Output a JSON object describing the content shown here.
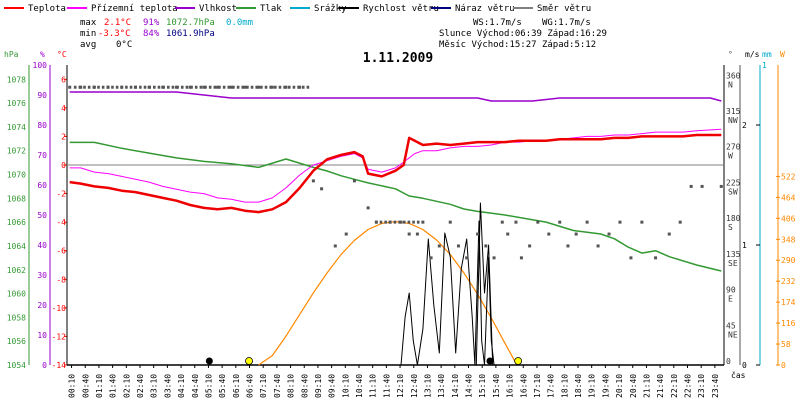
{
  "chart_data": {
    "type": "line",
    "title": "1.11.2009",
    "legend": [
      {
        "name": "Teplota",
        "color": "#ff0000"
      },
      {
        "name": "Přízemní teplota",
        "color": "#ff00ff"
      },
      {
        "name": "Vlhkost",
        "color": "#9900cc"
      },
      {
        "name": "Tlak",
        "color": "#339933"
      },
      {
        "name": "Srážky",
        "color": "#00aacc"
      },
      {
        "name": "Rychlost větru",
        "color": "#000000"
      },
      {
        "name": "Náraz větru",
        "color": "#000080"
      },
      {
        "name": "Směr větru",
        "color": "#808080"
      }
    ],
    "stats": {
      "max_label": "max",
      "max_temp": "2.1°C",
      "max_hum": "91%",
      "max_press": "1072.7hPa",
      "max_rain": "0.0mm",
      "min_label": "min",
      "min_temp": "-3.3°C",
      "min_hum": "84%",
      "min_press": "1061.9hPa",
      "avg_label": "avg",
      "avg_temp": "0°C",
      "ws": "WS:1.7m/s",
      "wg": "WG:1.7m/s",
      "sun": "Slunce Východ:06:39  Západ:16:29",
      "moon": "Měsíc  Východ:15:27  Západ:5:12"
    },
    "axes_units": {
      "hpa": "hPa",
      "pct": "%",
      "degc": "°C",
      "deg": "°",
      "ms": "m/s",
      "mm": "mm",
      "w": "W",
      "cas": "čas"
    },
    "axis_ticks": {
      "temp": [
        "6",
        "4",
        "2",
        "0",
        "-2",
        "-4",
        "-6",
        "-8",
        "-10",
        "-12",
        "-14"
      ],
      "humidity": [
        "100",
        "90",
        "80",
        "70",
        "60",
        "50",
        "40",
        "30",
        "20",
        "10",
        "0"
      ],
      "pressure": [
        "1078",
        "1076",
        "1074",
        "1072",
        "1070",
        "1068",
        "1066",
        "1064",
        "1062",
        "1060",
        "1058",
        "1056",
        "1054"
      ],
      "direction": [
        {
          "deg": "360",
          "dir": "N"
        },
        {
          "deg": "315",
          "dir": "NW"
        },
        {
          "deg": "270",
          "dir": "W"
        },
        {
          "deg": "225",
          "dir": "SW"
        },
        {
          "deg": "180",
          "dir": "S"
        },
        {
          "deg": "135",
          "dir": "SE"
        },
        {
          "deg": "90",
          "dir": "E"
        },
        {
          "deg": "45",
          "dir": "NE"
        },
        {
          "deg": "0",
          "dir": ""
        }
      ],
      "wind_ms": [
        "2",
        "1",
        "0"
      ],
      "rain_mm": [
        "1"
      ],
      "solar_w": [
        "522",
        "464",
        "406",
        "348",
        "290",
        "232",
        "174",
        "116",
        "58",
        "0"
      ],
      "time": [
        "00:10",
        "00:40",
        "01:10",
        "01:40",
        "02:10",
        "02:40",
        "03:10",
        "03:40",
        "04:10",
        "04:40",
        "05:10",
        "05:40",
        "06:10",
        "06:40",
        "07:10",
        "07:40",
        "08:10",
        "08:40",
        "09:10",
        "09:40",
        "10:10",
        "10:40",
        "11:10",
        "11:40",
        "12:10",
        "12:40",
        "13:10",
        "13:40",
        "14:10",
        "14:40",
        "15:10",
        "15:40",
        "16:10",
        "16:40",
        "17:10",
        "17:40",
        "18:10",
        "18:40",
        "19:10",
        "19:40",
        "20:10",
        "20:40",
        "21:10",
        "21:40",
        "22:10",
        "22:40",
        "23:10",
        "23:40"
      ]
    },
    "ranges": {
      "temp": [
        -14,
        7
      ],
      "time_hours": [
        0,
        24
      ],
      "solar": [
        0,
        522
      ],
      "wind": [
        0,
        2.5
      ]
    },
    "series": {
      "temperature": [
        [
          0.1,
          -1.2
        ],
        [
          0.5,
          -1.3
        ],
        [
          1.0,
          -1.5
        ],
        [
          1.5,
          -1.6
        ],
        [
          2.0,
          -1.8
        ],
        [
          2.5,
          -1.9
        ],
        [
          3.0,
          -2.1
        ],
        [
          3.5,
          -2.3
        ],
        [
          4.0,
          -2.5
        ],
        [
          4.5,
          -2.8
        ],
        [
          5.0,
          -3.0
        ],
        [
          5.5,
          -3.1
        ],
        [
          6.0,
          -3.0
        ],
        [
          6.5,
          -3.2
        ],
        [
          7.0,
          -3.3
        ],
        [
          7.5,
          -3.1
        ],
        [
          8.0,
          -2.6
        ],
        [
          8.5,
          -1.6
        ],
        [
          9.0,
          -0.4
        ],
        [
          9.5,
          0.4
        ],
        [
          10.0,
          0.7
        ],
        [
          10.5,
          0.9
        ],
        [
          10.8,
          0.6
        ],
        [
          11.0,
          -0.6
        ],
        [
          11.5,
          -0.8
        ],
        [
          12.0,
          -0.4
        ],
        [
          12.3,
          0.0
        ],
        [
          12.5,
          1.9
        ],
        [
          12.8,
          1.6
        ],
        [
          13.0,
          1.4
        ],
        [
          13.5,
          1.5
        ],
        [
          14.0,
          1.4
        ],
        [
          14.5,
          1.5
        ],
        [
          15.0,
          1.6
        ],
        [
          15.5,
          1.6
        ],
        [
          16.0,
          1.6
        ],
        [
          16.5,
          1.7
        ],
        [
          17.0,
          1.7
        ],
        [
          17.5,
          1.7
        ],
        [
          18.0,
          1.8
        ],
        [
          18.5,
          1.8
        ],
        [
          19.0,
          1.8
        ],
        [
          19.5,
          1.8
        ],
        [
          20.0,
          1.9
        ],
        [
          20.5,
          1.9
        ],
        [
          21.0,
          2.0
        ],
        [
          21.5,
          2.0
        ],
        [
          22.0,
          2.0
        ],
        [
          22.5,
          2.0
        ],
        [
          23.0,
          2.1
        ],
        [
          23.9,
          2.1
        ]
      ],
      "ground_temperature": [
        [
          0.1,
          -0.2
        ],
        [
          0.5,
          -0.2
        ],
        [
          1.0,
          -0.5
        ],
        [
          1.5,
          -0.6
        ],
        [
          2.0,
          -0.8
        ],
        [
          2.5,
          -1.0
        ],
        [
          3.0,
          -1.2
        ],
        [
          3.5,
          -1.5
        ],
        [
          4.0,
          -1.7
        ],
        [
          4.5,
          -1.9
        ],
        [
          5.0,
          -2.0
        ],
        [
          5.5,
          -2.3
        ],
        [
          6.0,
          -2.4
        ],
        [
          6.5,
          -2.6
        ],
        [
          7.0,
          -2.6
        ],
        [
          7.5,
          -2.3
        ],
        [
          8.0,
          -1.6
        ],
        [
          8.5,
          -0.7
        ],
        [
          9.0,
          0.0
        ],
        [
          9.5,
          0.3
        ],
        [
          10.0,
          0.6
        ],
        [
          10.5,
          0.8
        ],
        [
          10.8,
          0.5
        ],
        [
          11.0,
          -0.3
        ],
        [
          11.5,
          -0.5
        ],
        [
          12.0,
          -0.2
        ],
        [
          12.3,
          0.2
        ],
        [
          12.7,
          0.8
        ],
        [
          13.0,
          1.0
        ],
        [
          13.5,
          1.0
        ],
        [
          14.0,
          1.2
        ],
        [
          14.5,
          1.3
        ],
        [
          15.0,
          1.3
        ],
        [
          15.5,
          1.4
        ],
        [
          16.0,
          1.6
        ],
        [
          16.5,
          1.6
        ],
        [
          17.0,
          1.7
        ],
        [
          17.5,
          1.7
        ],
        [
          18.0,
          1.8
        ],
        [
          18.5,
          1.9
        ],
        [
          19.0,
          2.0
        ],
        [
          19.5,
          2.0
        ],
        [
          20.0,
          2.1
        ],
        [
          20.5,
          2.1
        ],
        [
          21.0,
          2.2
        ],
        [
          21.5,
          2.3
        ],
        [
          22.0,
          2.3
        ],
        [
          22.5,
          2.3
        ],
        [
          23.0,
          2.4
        ],
        [
          23.9,
          2.5
        ]
      ],
      "humidity_pct": [
        [
          0.1,
          91
        ],
        [
          1.0,
          91
        ],
        [
          2.0,
          91
        ],
        [
          3.0,
          91
        ],
        [
          4.0,
          91
        ],
        [
          5.0,
          90
        ],
        [
          6.0,
          89
        ],
        [
          7.0,
          89
        ],
        [
          8.0,
          89
        ],
        [
          9.0,
          89
        ],
        [
          10.0,
          89
        ],
        [
          11.0,
          89
        ],
        [
          12.0,
          89
        ],
        [
          13.0,
          89
        ],
        [
          14.0,
          89
        ],
        [
          15.0,
          89
        ],
        [
          15.5,
          88
        ],
        [
          16.0,
          88
        ],
        [
          16.5,
          88
        ],
        [
          17.0,
          88
        ],
        [
          18.0,
          89
        ],
        [
          19.0,
          89
        ],
        [
          20.0,
          89
        ],
        [
          21.0,
          89
        ],
        [
          22.0,
          89
        ],
        [
          23.0,
          89
        ],
        [
          23.5,
          89
        ],
        [
          23.9,
          88
        ]
      ],
      "pressure_hpa": [
        [
          0.1,
          1072.7
        ],
        [
          1.0,
          1072.7
        ],
        [
          2.0,
          1072.2
        ],
        [
          3.0,
          1071.8
        ],
        [
          4.0,
          1071.4
        ],
        [
          5.0,
          1071.1
        ],
        [
          6.0,
          1070.9
        ],
        [
          7.0,
          1070.6
        ],
        [
          8.0,
          1071.3
        ],
        [
          9.0,
          1070.6
        ],
        [
          9.5,
          1070.3
        ],
        [
          10.0,
          1069.9
        ],
        [
          10.5,
          1069.6
        ],
        [
          11.0,
          1069.3
        ],
        [
          12.0,
          1068.8
        ],
        [
          12.5,
          1068.2
        ],
        [
          13.0,
          1068.0
        ],
        [
          14.0,
          1067.5
        ],
        [
          14.5,
          1067.1
        ],
        [
          15.0,
          1066.9
        ],
        [
          16.0,
          1066.6
        ],
        [
          17.0,
          1066.2
        ],
        [
          17.5,
          1066.0
        ],
        [
          18.5,
          1065.3
        ],
        [
          19.5,
          1065.0
        ],
        [
          20.0,
          1064.6
        ],
        [
          20.5,
          1063.9
        ],
        [
          21.0,
          1063.4
        ],
        [
          21.5,
          1063.6
        ],
        [
          22.0,
          1063.1
        ],
        [
          23.0,
          1062.4
        ],
        [
          23.9,
          1061.9
        ]
      ],
      "solar_w": [
        [
          7.0,
          0
        ],
        [
          7.5,
          26
        ],
        [
          8.0,
          80
        ],
        [
          8.5,
          140
        ],
        [
          9.0,
          200
        ],
        [
          9.5,
          255
        ],
        [
          10.0,
          305
        ],
        [
          10.5,
          345
        ],
        [
          11.0,
          375
        ],
        [
          11.5,
          392
        ],
        [
          12.0,
          397
        ],
        [
          12.5,
          392
        ],
        [
          13.0,
          375
        ],
        [
          13.5,
          346
        ],
        [
          14.0,
          306
        ],
        [
          14.5,
          255
        ],
        [
          15.0,
          196
        ],
        [
          15.5,
          130
        ],
        [
          16.0,
          60
        ],
        [
          16.4,
          5
        ]
      ],
      "wind_ms": [
        [
          12.2,
          0
        ],
        [
          12.35,
          0.4
        ],
        [
          12.5,
          0.6
        ],
        [
          12.65,
          0.2
        ],
        [
          12.8,
          0.0
        ],
        [
          13.0,
          0.3
        ],
        [
          13.2,
          1.05
        ],
        [
          13.4,
          0.5
        ],
        [
          13.6,
          0.1
        ],
        [
          13.8,
          1.1
        ],
        [
          14.0,
          0.9
        ],
        [
          14.2,
          0.1
        ],
        [
          14.4,
          0.8
        ],
        [
          14.6,
          1.05
        ],
        [
          14.8,
          0.4
        ],
        [
          14.9,
          0.0
        ],
        [
          15.05,
          1.2
        ],
        [
          15.15,
          0.2
        ],
        [
          15.25,
          0.0
        ],
        [
          15.4,
          0.9
        ],
        [
          15.5,
          0.2
        ],
        [
          15.6,
          0.0
        ]
      ],
      "gust_ms": [
        [
          14.95,
          0
        ],
        [
          15.1,
          1.35
        ],
        [
          15.25,
          0.6
        ],
        [
          15.4,
          1.0
        ],
        [
          15.55,
          0.0
        ]
      ],
      "wind_direction_deg": [
        [
          0.1,
          350
        ],
        [
          0.5,
          350
        ],
        [
          1.0,
          350
        ],
        [
          1.5,
          350
        ],
        [
          2.0,
          350
        ],
        [
          2.5,
          350
        ],
        [
          3.0,
          350
        ],
        [
          3.5,
          350
        ],
        [
          4.0,
          350
        ],
        [
          4.5,
          350
        ],
        [
          5.0,
          350
        ],
        [
          5.5,
          350
        ],
        [
          6.0,
          350
        ],
        [
          6.5,
          350
        ],
        [
          7.0,
          350
        ],
        [
          7.5,
          350
        ],
        [
          8.0,
          350
        ],
        [
          8.5,
          350
        ],
        [
          9.0,
          232
        ],
        [
          9.3,
          222
        ],
        [
          9.8,
          150
        ],
        [
          10.2,
          165
        ],
        [
          10.5,
          232
        ],
        [
          11.0,
          198
        ],
        [
          11.3,
          180
        ],
        [
          11.8,
          180
        ],
        [
          12.2,
          180
        ],
        [
          12.5,
          165
        ],
        [
          12.8,
          165
        ],
        [
          13.0,
          180
        ],
        [
          13.3,
          135
        ],
        [
          13.6,
          150
        ],
        [
          14.0,
          180
        ],
        [
          14.3,
          150
        ],
        [
          14.6,
          135
        ],
        [
          15.0,
          165
        ],
        [
          15.3,
          150
        ],
        [
          15.6,
          135
        ],
        [
          15.9,
          180
        ],
        [
          16.1,
          165
        ],
        [
          16.4,
          180
        ],
        [
          16.6,
          135
        ],
        [
          16.9,
          150
        ],
        [
          17.2,
          180
        ],
        [
          17.6,
          165
        ],
        [
          18.0,
          180
        ],
        [
          18.3,
          150
        ],
        [
          18.6,
          165
        ],
        [
          19.0,
          180
        ],
        [
          19.4,
          150
        ],
        [
          19.8,
          165
        ],
        [
          20.2,
          180
        ],
        [
          20.6,
          135
        ],
        [
          21.0,
          180
        ],
        [
          21.5,
          135
        ],
        [
          22.0,
          165
        ],
        [
          22.4,
          180
        ],
        [
          22.8,
          225
        ],
        [
          23.2,
          225
        ],
        [
          23.9,
          225
        ]
      ],
      "events": [
        {
          "hour": 5.2,
          "kind": "moonset"
        },
        {
          "hour": 6.65,
          "kind": "sunrise"
        },
        {
          "hour": 15.45,
          "kind": "moonrise"
        },
        {
          "hour": 16.48,
          "kind": "sunset"
        }
      ]
    }
  }
}
